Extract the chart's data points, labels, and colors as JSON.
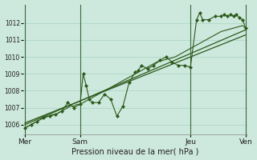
{
  "xlabel": "Pression niveau de la mer( hPa )",
  "bg_color": "#cde8dc",
  "grid_color": "#a8d4c4",
  "line_color": "#2d5a1b",
  "vline_color": "#3a6b3a",
  "ylim": [
    1005.4,
    1013.1
  ],
  "xlim": [
    -0.5,
    72.5
  ],
  "yticks": [
    1006,
    1007,
    1008,
    1009,
    1010,
    1011,
    1012
  ],
  "xtick_positions": [
    0,
    18,
    54,
    72
  ],
  "xtick_labels": [
    "Mer",
    "Sam",
    "Jeu",
    "Ven"
  ],
  "vlines": [
    0,
    18,
    54,
    72
  ],
  "smooth_x": [
    0,
    1,
    2,
    3,
    4,
    5,
    6,
    7,
    8,
    9,
    10,
    11,
    12,
    13,
    14,
    15,
    16,
    17,
    18,
    19,
    20,
    21,
    22,
    23,
    24,
    25,
    26,
    27,
    28,
    29,
    30,
    31,
    32,
    33,
    34,
    35,
    36,
    37,
    38,
    39,
    40,
    41,
    42,
    43,
    44,
    45,
    46,
    47,
    48,
    49,
    50,
    51,
    52,
    53,
    54,
    55,
    56,
    57,
    58,
    59,
    60,
    61,
    62,
    63,
    64,
    65,
    66,
    67,
    68,
    69,
    70,
    71,
    72
  ],
  "smooth_y": [
    1005.8,
    1005.9,
    1006.0,
    1006.1,
    1006.2,
    1006.3,
    1006.4,
    1006.5,
    1006.5,
    1006.6,
    1006.6,
    1006.7,
    1006.8,
    1006.9,
    1007.0,
    1007.1,
    1007.1,
    1007.2,
    1007.2,
    1007.3,
    1007.4,
    1007.5,
    1007.6,
    1007.7,
    1007.8,
    1007.9,
    1008.0,
    1008.1,
    1008.2,
    1008.3,
    1008.4,
    1008.5,
    1008.6,
    1008.7,
    1008.8,
    1008.9,
    1009.0,
    1009.1,
    1009.2,
    1009.3,
    1009.4,
    1009.5,
    1009.6,
    1009.7,
    1009.75,
    1009.8,
    1009.85,
    1009.9,
    1009.95,
    1010.0,
    1010.1,
    1010.2,
    1010.3,
    1010.4,
    1010.5,
    1010.6,
    1010.7,
    1010.8,
    1010.9,
    1011.0,
    1011.1,
    1011.2,
    1011.3,
    1011.4,
    1011.5,
    1011.55,
    1011.6,
    1011.65,
    1011.7,
    1011.75,
    1011.8,
    1011.85,
    1011.7
  ],
  "jagged_x": [
    0,
    2,
    4,
    6,
    8,
    10,
    12,
    14,
    16,
    18,
    19,
    20,
    21,
    22,
    24,
    26,
    28,
    30,
    32,
    34,
    36,
    37,
    38,
    40,
    42,
    44,
    46,
    48,
    50,
    52,
    54,
    56,
    57,
    58,
    60,
    62,
    64,
    65,
    66,
    67,
    68,
    69,
    70,
    71,
    72
  ],
  "jagged_y": [
    1005.8,
    1006.0,
    1006.2,
    1006.4,
    1006.5,
    1006.6,
    1006.8,
    1007.3,
    1007.0,
    1007.2,
    1009.0,
    1008.3,
    1007.5,
    1007.3,
    1007.3,
    1007.8,
    1007.5,
    1006.5,
    1007.1,
    1008.5,
    1009.1,
    1009.2,
    1009.5,
    1009.3,
    1009.5,
    1009.8,
    1010.0,
    1009.7,
    1009.5,
    1009.5,
    1009.4,
    1012.2,
    1012.6,
    1012.2,
    1012.2,
    1012.4,
    1012.4,
    1012.5,
    1012.4,
    1012.5,
    1012.4,
    1012.5,
    1012.3,
    1012.2,
    1011.7
  ],
  "trend_x": [
    0,
    72
  ],
  "trend_y": [
    1006.0,
    1011.6
  ],
  "trend2_x": [
    0,
    72
  ],
  "trend2_y": [
    1006.1,
    1011.3
  ],
  "marker_x": [
    0,
    2,
    4,
    6,
    8,
    10,
    12,
    14,
    16,
    18,
    19,
    20,
    21,
    22,
    24,
    26,
    28,
    30,
    32,
    34,
    36,
    37,
    38,
    40,
    42,
    44,
    46,
    48,
    50,
    52,
    54,
    56,
    57,
    58,
    60,
    62,
    64,
    65,
    66,
    67,
    68,
    69,
    70,
    71,
    72
  ],
  "marker_y": [
    1005.8,
    1006.0,
    1006.2,
    1006.4,
    1006.5,
    1006.6,
    1006.8,
    1007.3,
    1007.0,
    1007.2,
    1009.0,
    1008.3,
    1007.5,
    1007.3,
    1007.3,
    1007.8,
    1007.5,
    1006.5,
    1007.1,
    1008.5,
    1009.1,
    1009.2,
    1009.5,
    1009.3,
    1009.5,
    1009.8,
    1010.0,
    1009.7,
    1009.5,
    1009.5,
    1009.4,
    1012.2,
    1012.6,
    1012.2,
    1012.2,
    1012.4,
    1012.4,
    1012.5,
    1012.4,
    1012.5,
    1012.4,
    1012.5,
    1012.3,
    1012.2,
    1011.7
  ]
}
